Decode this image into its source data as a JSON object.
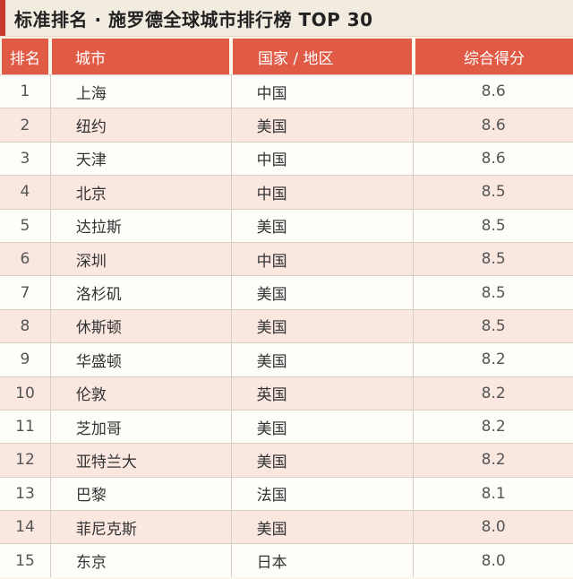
{
  "title": "标准排名 · 施罗德全球城市排行榜 TOP 30",
  "columns": {
    "rank": "排名",
    "city": "城市",
    "country": "国家 / 地区",
    "score": "综合得分"
  },
  "rows": [
    {
      "rank": "1",
      "city": "上海",
      "country": "中国",
      "score": "8.6"
    },
    {
      "rank": "2",
      "city": "纽约",
      "country": "美国",
      "score": "8.6"
    },
    {
      "rank": "3",
      "city": "天津",
      "country": "中国",
      "score": "8.6"
    },
    {
      "rank": "4",
      "city": "北京",
      "country": "中国",
      "score": "8.5"
    },
    {
      "rank": "5",
      "city": "达拉斯",
      "country": "美国",
      "score": "8.5"
    },
    {
      "rank": "6",
      "city": "深圳",
      "country": "中国",
      "score": "8.5"
    },
    {
      "rank": "7",
      "city": "洛杉矶",
      "country": "美国",
      "score": "8.5"
    },
    {
      "rank": "8",
      "city": "休斯顿",
      "country": "美国",
      "score": "8.5"
    },
    {
      "rank": "9",
      "city": "华盛顿",
      "country": "美国",
      "score": "8.2"
    },
    {
      "rank": "10",
      "city": "伦敦",
      "country": "英国",
      "score": "8.2"
    },
    {
      "rank": "11",
      "city": "芝加哥",
      "country": "美国",
      "score": "8.2"
    },
    {
      "rank": "12",
      "city": "亚特兰大",
      "country": "美国",
      "score": "8.2"
    },
    {
      "rank": "13",
      "city": "巴黎",
      "country": "法国",
      "score": "8.1"
    },
    {
      "rank": "14",
      "city": "菲尼克斯",
      "country": "美国",
      "score": "8.0"
    },
    {
      "rank": "15",
      "city": "东京",
      "country": "日本",
      "score": "8.0"
    }
  ]
}
